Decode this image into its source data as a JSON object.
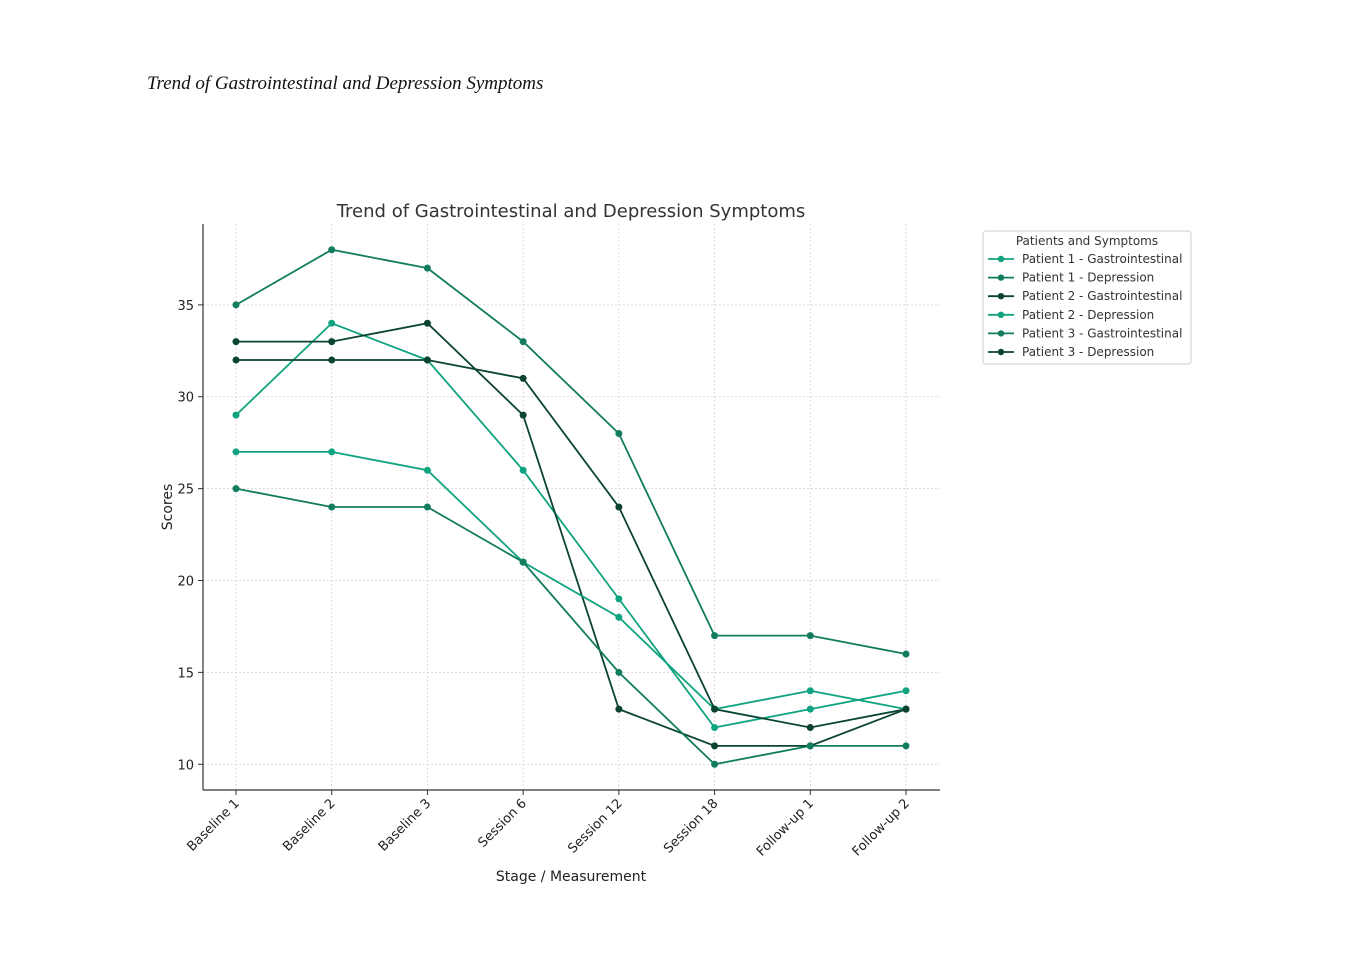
{
  "document_title": "Trend of Gastrointestinal and Depression Symptoms",
  "chart_data": {
    "type": "line",
    "title": "Trend of Gastrointestinal and Depression Symptoms",
    "xlabel": "Stage / Measurement",
    "ylabel": "Scores",
    "categories": [
      "Baseline 1",
      "Baseline 2",
      "Baseline 3",
      "Session 6",
      "Session 12",
      "Session 18",
      "Follow-up 1",
      "Follow-up 2"
    ],
    "ylim": [
      8.6,
      39.4
    ],
    "yticks": [
      10,
      15,
      20,
      25,
      30,
      35
    ],
    "grid": true,
    "legend_title": "Patients and Symptoms",
    "legend_position": "outside-top-right",
    "series": [
      {
        "name": "Patient 1 - Gastrointestinal",
        "color": "#10a37f",
        "values": [
          29,
          34,
          32,
          26,
          19,
          12,
          13,
          14
        ]
      },
      {
        "name": "Patient 1 - Depression",
        "color": "#127c5e",
        "values": [
          35,
          38,
          37,
          33,
          28,
          17,
          17,
          16
        ]
      },
      {
        "name": "Patient 2 - Gastrointestinal",
        "color": "#0b4432",
        "values": [
          33,
          33,
          34,
          29,
          13,
          11,
          11,
          13
        ]
      },
      {
        "name": "Patient 2 - Depression",
        "color": "#10a37f",
        "values": [
          27,
          27,
          26,
          21,
          18,
          13,
          14,
          13
        ]
      },
      {
        "name": "Patient 3 - Gastrointestinal",
        "color": "#127c5e",
        "values": [
          25,
          24,
          24,
          21,
          15,
          10,
          11,
          11
        ]
      },
      {
        "name": "Patient 3 - Depression",
        "color": "#0b4432",
        "values": [
          32,
          32,
          32,
          31,
          24,
          13,
          12,
          13
        ]
      }
    ]
  }
}
